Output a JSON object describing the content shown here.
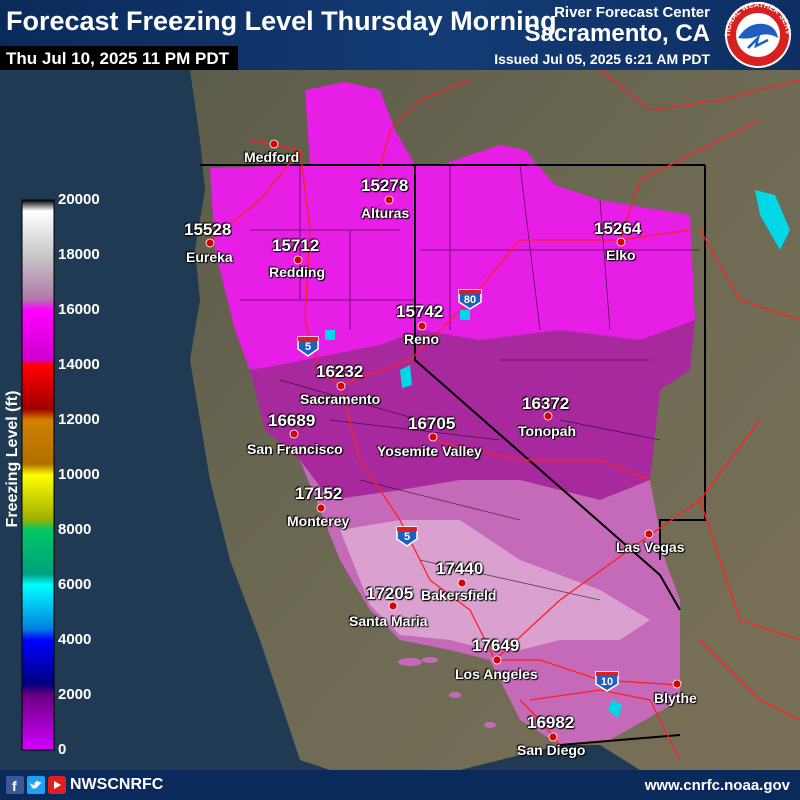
{
  "header": {
    "title": "Forecast Freezing Level Thursday Morning",
    "valid_time": "Thu Jul 10, 2025 11 PM PDT",
    "rfc_name": "River Forecast Center",
    "office": "Sacramento, CA",
    "issued": "Issued Jul 05, 2025 6:21 AM PDT",
    "logo_text": "NATIONAL WEATHER SERVICE"
  },
  "legend": {
    "title": "Freezing Level (ft)",
    "ticks": [
      "20000",
      "18000",
      "16000",
      "14000",
      "12000",
      "10000",
      "8000",
      "6000",
      "4000",
      "2000",
      "0"
    ],
    "colors": [
      "#000000",
      "#ffffff",
      "#c8c8c8",
      "#b07aa8",
      "#ff00ff",
      "#ff0000",
      "#b00000",
      "#c87800",
      "#ffff00",
      "#00c864",
      "#00ffff",
      "#0000ff",
      "#00008b",
      "#6a0080",
      "#d200ff"
    ]
  },
  "cities": [
    {
      "name": "Medford",
      "value": ""
    },
    {
      "name": "Alturas",
      "value": "15278"
    },
    {
      "name": "Eureka",
      "value": "15528"
    },
    {
      "name": "Redding",
      "value": "15712"
    },
    {
      "name": "Elko",
      "value": "15264"
    },
    {
      "name": "Reno",
      "value": "15742"
    },
    {
      "name": "Sacramento",
      "value": "16232"
    },
    {
      "name": "Tonopah",
      "value": "16372"
    },
    {
      "name": "San Francisco",
      "value": "16689"
    },
    {
      "name": "Yosemite Valley",
      "value": "16705"
    },
    {
      "name": "Monterey",
      "value": "17152"
    },
    {
      "name": "Las Vegas",
      "value": ""
    },
    {
      "name": "Bakersfield",
      "value": "17440"
    },
    {
      "name": "Santa Maria",
      "value": "17205"
    },
    {
      "name": "Los Angeles",
      "value": "17649"
    },
    {
      "name": "Blythe",
      "value": ""
    },
    {
      "name": "San Diego",
      "value": "16982"
    }
  ],
  "interstates": [
    "80",
    "5",
    "5",
    "10"
  ],
  "footer": {
    "handle": "NWSCNRFC",
    "website": "www.cnrfc.noaa.gov",
    "social": [
      "facebook-icon",
      "twitter-icon",
      "youtube-icon"
    ]
  },
  "colors": {
    "magenta": "#e61ee6",
    "purple": "#a8299e",
    "pink": "#c46ab8",
    "light_pink": "#d9a0d0",
    "ocean": "#1f3a52",
    "land": "#5a5a48",
    "roads": "#ff2020",
    "header": "#0a2a5a"
  }
}
